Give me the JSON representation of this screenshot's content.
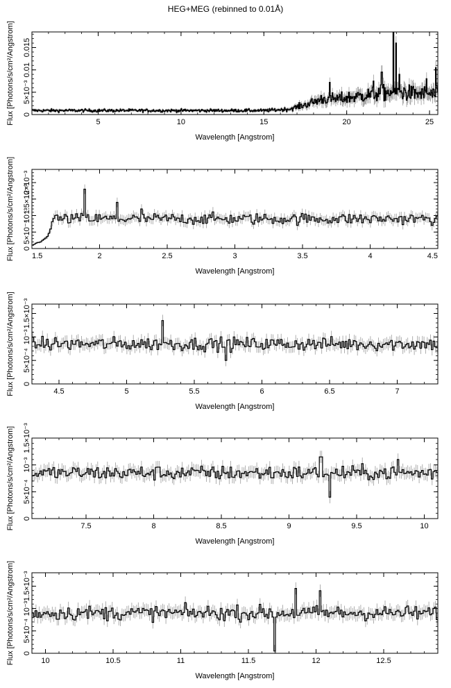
{
  "title": "HEG+MEG (rebinned to 0.01Å)",
  "colors": {
    "spectrum": "#000000",
    "error_bars": "#9a9a9a",
    "frame": "#000000"
  },
  "chart_data": [
    {
      "type": "line",
      "title": "HEG+MEG (rebinned to 0.01Å)",
      "xlabel": "Wavelength [Angstrom]",
      "ylabel": "Flux [Photons/s/cm²/Angstrom]",
      "xlim": [
        1.0,
        25.5
      ],
      "ylim": [
        0,
        0.0185
      ],
      "xticks": [
        5,
        10,
        15,
        20,
        25
      ],
      "xtick_labels": [
        "5",
        "10",
        "15",
        "20",
        "25"
      ],
      "yticks": [
        0,
        0.005,
        0.01,
        0.015
      ],
      "ytick_labels": [
        "0",
        "5×10⁻³",
        "0.01",
        "0.015"
      ],
      "grid": false,
      "profile": [
        [
          1.0,
          0.0009
        ],
        [
          15.0,
          0.0009
        ],
        [
          16.5,
          0.0012
        ],
        [
          17.5,
          0.0022
        ],
        [
          18.5,
          0.0035
        ],
        [
          19.5,
          0.0035
        ],
        [
          20.5,
          0.004
        ],
        [
          21.5,
          0.0045
        ],
        [
          22.5,
          0.005
        ],
        [
          25.5,
          0.0045
        ]
      ],
      "features": [
        [
          18.97,
          0.0072
        ],
        [
          21.6,
          0.0075
        ],
        [
          22.1,
          0.0095
        ],
        [
          22.8,
          0.0185
        ],
        [
          22.95,
          0.016
        ],
        [
          23.15,
          0.009
        ],
        [
          23.45,
          0.006
        ],
        [
          24.8,
          0.008
        ],
        [
          25.35,
          0.0105
        ]
      ],
      "noise": 0.35,
      "step": 0.04
    },
    {
      "type": "line",
      "xlabel": "Wavelength [Angstrom]",
      "ylabel": "Flux [Photons/s/cm²/Angstrom]",
      "xlim": [
        1.5,
        4.5
      ],
      "ylim": [
        0,
        0.0024
      ],
      "xticks": [
        1.5,
        2,
        2.5,
        3,
        3.5,
        4,
        4.5
      ],
      "xtick_labels": [
        "1.5",
        "2",
        "2.5",
        "3",
        "3.5",
        "4",
        "4.5"
      ],
      "yticks": [
        0,
        0.0005,
        0.001,
        0.0015,
        0.002
      ],
      "ytick_labels": [
        "0",
        "5×10⁻⁴",
        "10⁻³",
        "1.5×10⁻³",
        "2×10⁻³"
      ],
      "grid": false,
      "profile": [
        [
          1.5,
          0.0001
        ],
        [
          1.6,
          0.0003
        ],
        [
          1.65,
          0.0009
        ],
        [
          1.7,
          0.0009
        ],
        [
          4.5,
          0.0009
        ]
      ],
      "features": [
        [
          1.88,
          0.0018
        ],
        [
          2.12,
          0.0014
        ],
        [
          2.3,
          0.0012
        ]
      ],
      "noise": 0.18,
      "step": 0.012
    },
    {
      "type": "line",
      "xlabel": "Wavelength [Angstrom]",
      "ylabel": "Flux [Photons/s/cm²/Angstrom]",
      "xlim": [
        4.3,
        7.3
      ],
      "ylim": [
        0,
        0.0017
      ],
      "xticks": [
        4.5,
        5,
        5.5,
        6,
        6.5,
        7
      ],
      "xtick_labels": [
        "4.5",
        "5",
        "5.5",
        "6",
        "6.5",
        "7"
      ],
      "yticks": [
        0,
        0.0005,
        0.001,
        0.0015
      ],
      "ytick_labels": [
        "0",
        "5×10⁻⁴",
        "10⁻³",
        "1.5×10⁻³"
      ],
      "grid": false,
      "profile": [
        [
          4.3,
          0.00085
        ],
        [
          7.3,
          0.00085
        ]
      ],
      "features": [
        [
          5.26,
          0.00135
        ],
        [
          5.73,
          0.0005
        ]
      ],
      "noise": 0.16,
      "step": 0.012
    },
    {
      "type": "line",
      "xlabel": "Wavelength [Angstrom]",
      "ylabel": "Flux [Photons/s/cm²/Angstrom]",
      "xlim": [
        7.1,
        10.1
      ],
      "ylim": [
        0,
        0.0015
      ],
      "xticks": [
        7.5,
        8,
        8.5,
        9,
        9.5,
        10
      ],
      "xtick_labels": [
        "7.5",
        "8",
        "8.5",
        "9",
        "9.5",
        "10"
      ],
      "yticks": [
        0,
        0.0005,
        0.001,
        0.0015
      ],
      "ytick_labels": [
        "0",
        "5×10⁻⁴",
        "10⁻³",
        "1.5×10⁻³"
      ],
      "grid": false,
      "profile": [
        [
          7.1,
          0.00085
        ],
        [
          10.1,
          0.00085
        ]
      ],
      "features": [
        [
          9.23,
          0.00115
        ],
        [
          9.3,
          0.0004
        ],
        [
          9.8,
          0.0011
        ]
      ],
      "noise": 0.15,
      "step": 0.012
    },
    {
      "type": "line",
      "xlabel": "Wavelength [Angstrom]",
      "ylabel": "Flux [Photons/s/cm²/Angstrom]",
      "xlim": [
        9.9,
        12.9
      ],
      "ylim": [
        0,
        0.0018
      ],
      "xticks": [
        10,
        10.5,
        11,
        11.5,
        12,
        12.5
      ],
      "xtick_labels": [
        "10",
        "10.5",
        "11",
        "11.5",
        "12",
        "12.5"
      ],
      "yticks": [
        0,
        0.0005,
        0.001,
        0.0015
      ],
      "ytick_labels": [
        "0",
        "5×10⁻⁴",
        "10⁻³",
        "1.5×10⁻³"
      ],
      "grid": false,
      "profile": [
        [
          9.9,
          0.0009
        ],
        [
          12.9,
          0.0009
        ]
      ],
      "features": [
        [
          11.69,
          5e-05
        ],
        [
          12.02,
          0.0014
        ],
        [
          11.84,
          0.00145
        ]
      ],
      "noise": 0.17,
      "step": 0.012
    }
  ]
}
